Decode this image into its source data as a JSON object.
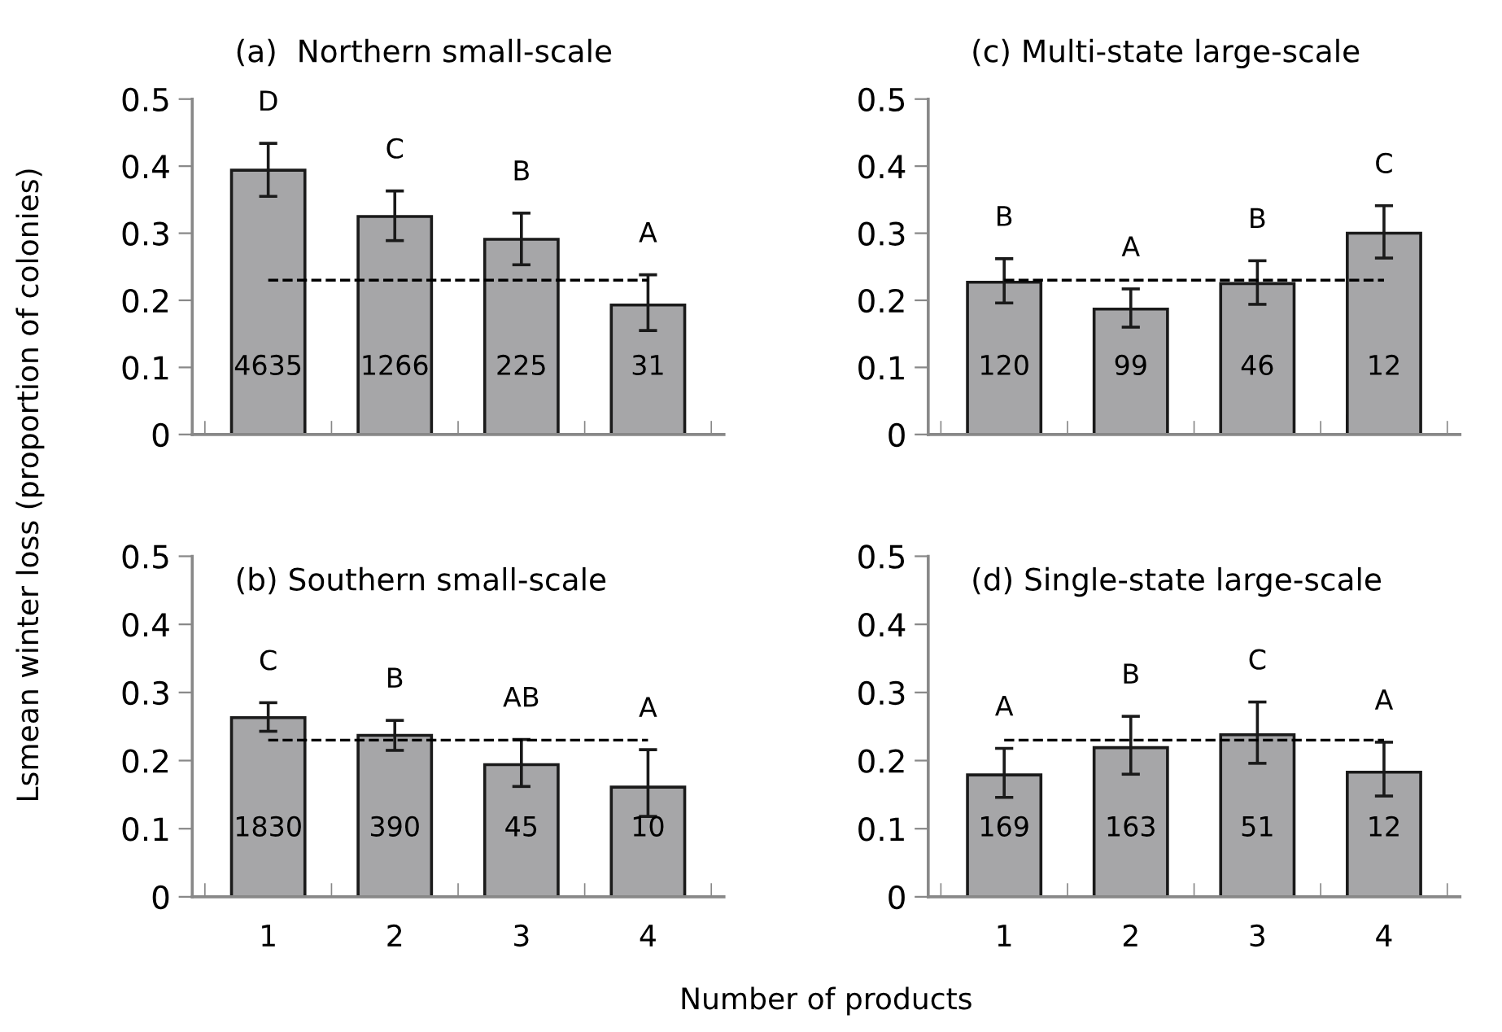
{
  "chart_data": [
    {
      "type": "bar",
      "title": "(a)  Northern small-scale",
      "ylabel": "Lsmean winter loss (proportion of colonies)",
      "categories": [
        "1",
        "2",
        "3",
        "4"
      ],
      "tick_labels": "y",
      "color": "#a6a6a8",
      "values": [
        0.394,
        0.325,
        0.291,
        0.193
      ],
      "errors": [
        [
          0.355,
          0.434
        ],
        [
          0.289,
          0.363
        ],
        [
          0.253,
          0.33
        ],
        [
          0.155,
          0.238
        ]
      ],
      "ylim": [
        0,
        0.5
      ],
      "yticks": [
        0,
        0.1,
        0.2,
        0.3,
        0.4,
        0.5
      ],
      "ref_lines": [
        {
          "axis": "y",
          "value": 0.23,
          "line_style": "dashed",
          "color": "#000000"
        }
      ],
      "annotations": [
        "D",
        "C",
        "B",
        "A",
        "4635",
        "1266",
        "225",
        "31"
      ]
    },
    {
      "type": "bar",
      "title": "(c) Multi-state large-scale",
      "categories": [
        "1",
        "2",
        "3",
        "4"
      ],
      "tick_labels": "y",
      "color": "#a6a6a8",
      "values": [
        0.227,
        0.187,
        0.225,
        0.3
      ],
      "errors": [
        [
          0.196,
          0.262
        ],
        [
          0.16,
          0.217
        ],
        [
          0.194,
          0.259
        ],
        [
          0.263,
          0.341
        ]
      ],
      "ylim": [
        0,
        0.5
      ],
      "yticks": [
        0,
        0.1,
        0.2,
        0.3,
        0.4,
        0.5
      ],
      "ref_lines": [
        {
          "axis": "y",
          "value": 0.23,
          "line_style": "dashed",
          "color": "#000000"
        }
      ],
      "annotations": [
        "B",
        "A",
        "B",
        "C",
        "120",
        "99",
        "46",
        "12"
      ]
    },
    {
      "type": "bar",
      "title": "(b) Southern small-scale",
      "xlabel": "Number of products",
      "categories": [
        "1",
        "2",
        "3",
        "4"
      ],
      "color": "#a6a6a8",
      "values": [
        0.263,
        0.237,
        0.194,
        0.161
      ],
      "errors": [
        [
          0.243,
          0.285
        ],
        [
          0.215,
          0.259
        ],
        [
          0.162,
          0.231
        ],
        [
          0.118,
          0.216
        ]
      ],
      "ylim": [
        0,
        0.5
      ],
      "yticks": [
        0,
        0.1,
        0.2,
        0.3,
        0.4,
        0.5
      ],
      "ref_lines": [
        {
          "axis": "y",
          "value": 0.23,
          "line_style": "dashed",
          "color": "#000000"
        }
      ],
      "annotations": [
        "C",
        "B",
        "AB",
        "A",
        "1830",
        "390",
        "45",
        "10"
      ]
    },
    {
      "type": "bar",
      "title": "(d) Single-state large-scale",
      "categories": [
        "1",
        "2",
        "3",
        "4"
      ],
      "color": "#a6a6a8",
      "values": [
        0.179,
        0.219,
        0.238,
        0.183
      ],
      "errors": [
        [
          0.146,
          0.218
        ],
        [
          0.18,
          0.265
        ],
        [
          0.196,
          0.286
        ],
        [
          0.148,
          0.227
        ]
      ],
      "ylim": [
        0,
        0.5
      ],
      "yticks": [
        0,
        0.1,
        0.2,
        0.3,
        0.4,
        0.5
      ],
      "ref_lines": [
        {
          "axis": "y",
          "value": 0.23,
          "line_style": "dashed",
          "color": "#000000"
        }
      ],
      "annotations": [
        "A",
        "B",
        "C",
        "A",
        "169",
        "163",
        "51",
        "12"
      ]
    }
  ]
}
